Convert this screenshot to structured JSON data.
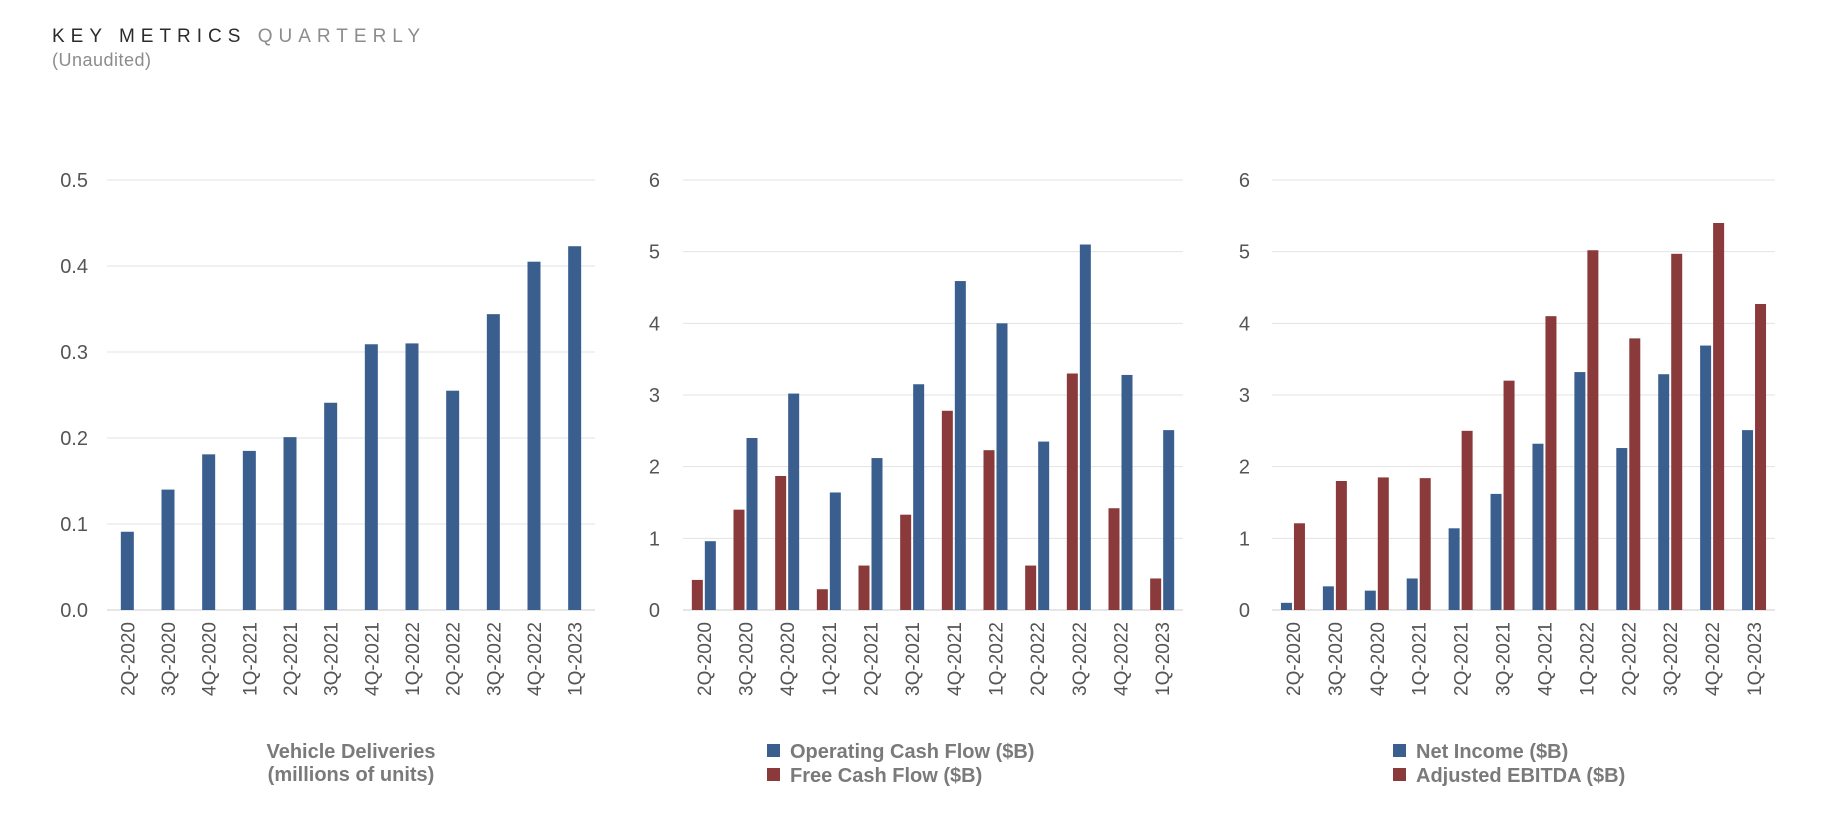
{
  "header": {
    "title_main": "KEY METRICS",
    "title_accent": "QUARTERLY",
    "subtitle": "(Unaudited)"
  },
  "colors": {
    "blue": "#3a5f8f",
    "red": "#8a3a3a",
    "grid": "#e3e3e3",
    "axis": "#cccccc"
  },
  "chart_data": [
    {
      "type": "bar",
      "categories": [
        "2Q-2020",
        "3Q-2020",
        "4Q-2020",
        "1Q-2021",
        "2Q-2021",
        "3Q-2021",
        "4Q-2021",
        "1Q-2022",
        "2Q-2022",
        "3Q-2022",
        "4Q-2022",
        "1Q-2023"
      ],
      "series": [
        {
          "name": "Vehicle Deliveries",
          "color": "#3a5f8f",
          "values": [
            0.091,
            0.14,
            0.181,
            0.185,
            0.201,
            0.241,
            0.309,
            0.31,
            0.255,
            0.344,
            0.405,
            0.423
          ]
        }
      ],
      "yticks": [
        "0.0",
        "0.1",
        "0.2",
        "0.3",
        "0.4",
        "0.5"
      ],
      "ylim": [
        0,
        0.5
      ],
      "xlabel_lines": [
        "Vehicle Deliveries",
        "(millions of units)"
      ],
      "legend": []
    },
    {
      "type": "bar",
      "categories": [
        "2Q-2020",
        "3Q-2020",
        "4Q-2020",
        "1Q-2021",
        "2Q-2021",
        "3Q-2021",
        "4Q-2021",
        "1Q-2022",
        "2Q-2022",
        "3Q-2022",
        "4Q-2022",
        "1Q-2023"
      ],
      "series": [
        {
          "name": "Free Cash Flow ($B)",
          "color": "#8a3a3a",
          "values": [
            0.42,
            1.4,
            1.87,
            0.29,
            0.62,
            1.33,
            2.78,
            2.23,
            0.62,
            3.3,
            1.42,
            0.44
          ]
        },
        {
          "name": "Operating Cash Flow ($B)",
          "color": "#3a5f8f",
          "values": [
            0.96,
            2.4,
            3.02,
            1.64,
            2.12,
            3.15,
            4.59,
            4.0,
            2.35,
            5.1,
            3.28,
            2.51
          ]
        }
      ],
      "yticks": [
        "0",
        "1",
        "2",
        "3",
        "4",
        "5",
        "6"
      ],
      "ylim": [
        0,
        6
      ],
      "xlabel_lines": [],
      "legend": [
        {
          "label": "Operating Cash Flow ($B)",
          "color": "#3a5f8f"
        },
        {
          "label": "Free Cash Flow ($B)",
          "color": "#8a3a3a"
        }
      ]
    },
    {
      "type": "bar",
      "categories": [
        "2Q-2020",
        "3Q-2020",
        "4Q-2020",
        "1Q-2021",
        "2Q-2021",
        "3Q-2021",
        "4Q-2021",
        "1Q-2022",
        "2Q-2022",
        "3Q-2022",
        "4Q-2022",
        "1Q-2023"
      ],
      "series": [
        {
          "name": "Net Income ($B)",
          "color": "#3a5f8f",
          "values": [
            0.1,
            0.33,
            0.27,
            0.44,
            1.14,
            1.62,
            2.32,
            3.32,
            2.26,
            3.29,
            3.69,
            2.51
          ]
        },
        {
          "name": "Adjusted EBITDA ($B)",
          "color": "#8a3a3a",
          "values": [
            1.21,
            1.8,
            1.85,
            1.84,
            2.5,
            3.2,
            4.1,
            5.02,
            3.79,
            4.97,
            5.4,
            4.27
          ]
        }
      ],
      "yticks": [
        "0",
        "1",
        "2",
        "3",
        "4",
        "5",
        "6"
      ],
      "ylim": [
        0,
        6
      ],
      "xlabel_lines": [],
      "legend": [
        {
          "label": "Net Income ($B)",
          "color": "#3a5f8f"
        },
        {
          "label": "Adjusted EBITDA ($B)",
          "color": "#8a3a3a"
        }
      ]
    }
  ]
}
